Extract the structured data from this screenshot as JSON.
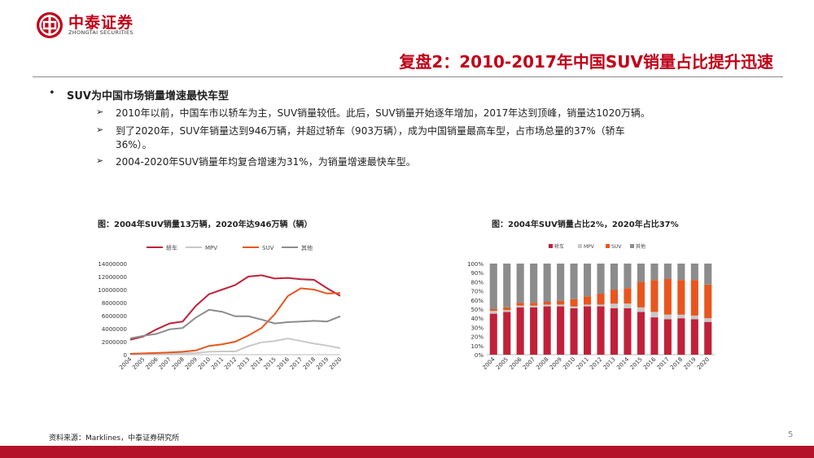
{
  "header": {
    "logo_cn": "中泰证券",
    "logo_en": "ZHONGTAI SECURITIES",
    "brand_color": "#c00018"
  },
  "title": "复盘2：2010-2017年中国SUV销量占比提升迅速",
  "bullets": {
    "main": "SUV为中国市场销量增速最快车型",
    "subs": [
      "2010年以前，中国车市以轿车为主，SUV销量较低。此后，SUV销量开始逐年增加，2017年达到顶峰，销量达1020万辆。",
      "到了2020年，SUV年销量达到946万辆，并超过轿车（903万辆），成为中国销量最高车型，占市场总量的37%（轿车",
      "36%）。",
      "2004-2020年SUV销量年均复合增速为31%，为销量增速最快车型。"
    ]
  },
  "footer": {
    "source": "资料来源：Marklines，中泰证券研究所",
    "page": "5"
  },
  "chart_data": [
    {
      "type": "line",
      "title": "图：2004年SUV销量13万辆，2020年达946万辆（辆）",
      "x": [
        "2004",
        "2005",
        "2006",
        "2007",
        "2008",
        "2009",
        "2010",
        "2011",
        "2012",
        "2013",
        "2014",
        "2015",
        "2016",
        "2017",
        "2018",
        "2019",
        "2020"
      ],
      "y_ticks": [
        "0",
        "2000000",
        "4000000",
        "6000000",
        "8000000",
        "10000000",
        "12000000",
        "14000000"
      ],
      "ylim": [
        0,
        14000000
      ],
      "legend_position": "top",
      "series": [
        {
          "name": "轿车",
          "color": "#c0213a",
          "values": [
            2300000,
            2800000,
            3900000,
            4800000,
            5100000,
            7500000,
            9300000,
            10000000,
            10700000,
            12000000,
            12200000,
            11700000,
            11800000,
            11600000,
            11500000,
            10200000,
            9030000
          ]
        },
        {
          "name": "MPV",
          "color": "#c8c8c8",
          "values": [
            150000,
            160000,
            190000,
            200000,
            200000,
            250000,
            450000,
            500000,
            500000,
            1300000,
            1900000,
            2100000,
            2500000,
            2100000,
            1700000,
            1400000,
            1000000
          ]
        },
        {
          "name": "SUV",
          "color": "#e8561e",
          "values": [
            130000,
            200000,
            260000,
            350000,
            450000,
            650000,
            1350000,
            1600000,
            2000000,
            2950000,
            4100000,
            6200000,
            9000000,
            10200000,
            10000000,
            9400000,
            9460000
          ]
        },
        {
          "name": "其他",
          "color": "#8c8c8c",
          "values": [
            2500000,
            2900000,
            3200000,
            3900000,
            4100000,
            5700000,
            6900000,
            6600000,
            5900000,
            5900000,
            5400000,
            4800000,
            5000000,
            5100000,
            5200000,
            5100000,
            5900000
          ]
        }
      ]
    },
    {
      "type": "bar",
      "stacked": true,
      "title": "图：2004年SUV销量占比2%，2020年占比37%",
      "categories": [
        "2004",
        "2005",
        "2006",
        "2007",
        "2008",
        "2009",
        "2010",
        "2011",
        "2012",
        "2013",
        "2014",
        "2015",
        "2016",
        "2017",
        "2018",
        "2019",
        "2020"
      ],
      "y_ticks": [
        "0%",
        "10%",
        "20%",
        "30%",
        "40%",
        "50%",
        "60%",
        "70%",
        "80%",
        "90%",
        "100%"
      ],
      "ylim": [
        0,
        100
      ],
      "legend_position": "top",
      "series": [
        {
          "name": "轿车",
          "color": "#c0213a",
          "values": [
            45,
            47,
            52,
            52,
            53,
            53,
            51,
            53,
            53,
            51,
            51,
            47,
            41,
            39,
            40,
            39,
            36
          ]
        },
        {
          "name": "MPV",
          "color": "#c8c8c8",
          "values": [
            3,
            2,
            2,
            2,
            2,
            2,
            2,
            2,
            2,
            5,
            5,
            5,
            6,
            5,
            4,
            4,
            4
          ]
        },
        {
          "name": "SUV",
          "color": "#e8561e",
          "values": [
            2,
            3,
            3,
            3,
            3,
            4,
            8,
            9,
            12,
            15,
            17,
            28,
            35,
            39,
            38,
            39,
            37
          ]
        },
        {
          "name": "其他",
          "color": "#8c8c8c",
          "values": [
            50,
            48,
            43,
            43,
            42,
            41,
            39,
            36,
            33,
            29,
            27,
            20,
            18,
            17,
            18,
            18,
            23
          ]
        }
      ]
    }
  ]
}
